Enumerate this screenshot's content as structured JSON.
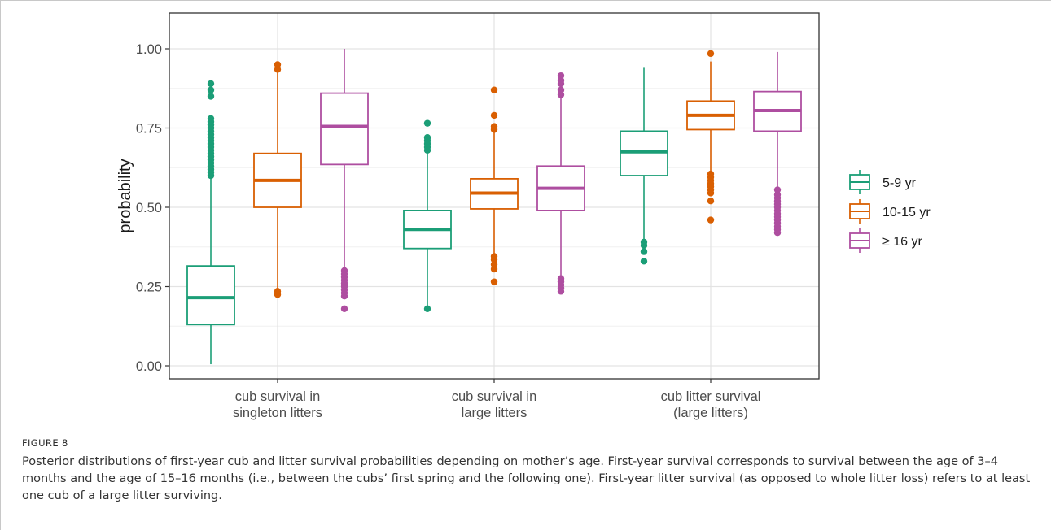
{
  "figure": {
    "label": "FIGURE 8",
    "caption": "Posterior distributions of first-year cub and litter survival probabilities depending on mother’s age. First-year survival corresponds to survival between the age of 3–4 months and the age of 15–16 months (i.e., between the cubs’ first spring and the following one). First-year litter survival (as opposed to whole litter loss) refers to at least one cub of a large litter surviving."
  },
  "chart_data": {
    "type": "box",
    "title": "",
    "xlabel": "",
    "ylabel": "probability",
    "ylim": [
      0,
      1
    ],
    "yticks": [
      "0.00",
      "0.25",
      "0.50",
      "0.75",
      "1.00"
    ],
    "grid": true,
    "legend": "right",
    "categories": [
      [
        "cub survival in",
        "singleton litters"
      ],
      [
        "cub survival in",
        "large litters"
      ],
      [
        "cub litter survival",
        "(large litters)"
      ]
    ],
    "series": [
      {
        "name": "5-9 yr",
        "color": "#1b9e77",
        "boxes": [
          {
            "min": 0.005,
            "q1": 0.13,
            "median": 0.215,
            "q3": 0.315,
            "max": 0.59,
            "outliers": [
              0.6,
              0.61,
              0.62,
              0.63,
              0.64,
              0.65,
              0.66,
              0.67,
              0.68,
              0.69,
              0.7,
              0.71,
              0.72,
              0.73,
              0.74,
              0.75,
              0.76,
              0.77,
              0.78,
              0.85,
              0.87,
              0.89
            ]
          },
          {
            "min": 0.18,
            "q1": 0.37,
            "median": 0.43,
            "q3": 0.49,
            "max": 0.675,
            "outliers": [
              0.18,
              0.68,
              0.69,
              0.7,
              0.71,
              0.72,
              0.765
            ]
          },
          {
            "min": 0.39,
            "q1": 0.6,
            "median": 0.675,
            "q3": 0.74,
            "max": 0.94,
            "outliers": [
              0.33,
              0.36,
              0.38,
              0.39
            ]
          }
        ]
      },
      {
        "name": "10-15 yr",
        "color": "#d95f02",
        "boxes": [
          {
            "min": 0.24,
            "q1": 0.5,
            "median": 0.585,
            "q3": 0.67,
            "max": 0.93,
            "outliers": [
              0.225,
              0.235,
              0.935,
              0.95
            ]
          },
          {
            "min": 0.35,
            "q1": 0.495,
            "median": 0.545,
            "q3": 0.59,
            "max": 0.74,
            "outliers": [
              0.265,
              0.305,
              0.32,
              0.335,
              0.345,
              0.745,
              0.755,
              0.79,
              0.87
            ]
          },
          {
            "min": 0.61,
            "q1": 0.745,
            "median": 0.79,
            "q3": 0.835,
            "max": 0.96,
            "outliers": [
              0.46,
              0.52,
              0.545,
              0.555,
              0.565,
              0.575,
              0.585,
              0.595,
              0.605,
              0.985
            ]
          }
        ]
      },
      {
        "name": "≥ 16 yr",
        "color": "#ae4ea0",
        "boxes": [
          {
            "min": 0.3,
            "q1": 0.635,
            "median": 0.755,
            "q3": 0.86,
            "max": 1.0,
            "outliers": [
              0.18,
              0.22,
              0.23,
              0.24,
              0.25,
              0.26,
              0.27,
              0.28,
              0.29,
              0.3
            ]
          },
          {
            "min": 0.28,
            "q1": 0.49,
            "median": 0.56,
            "q3": 0.63,
            "max": 0.85,
            "outliers": [
              0.235,
              0.245,
              0.255,
              0.265,
              0.275,
              0.855,
              0.87,
              0.89,
              0.9,
              0.915
            ]
          },
          {
            "min": 0.56,
            "q1": 0.74,
            "median": 0.805,
            "q3": 0.865,
            "max": 0.99,
            "outliers": [
              0.42,
              0.43,
              0.44,
              0.45,
              0.46,
              0.47,
              0.48,
              0.49,
              0.5,
              0.51,
              0.52,
              0.53,
              0.54,
              0.555
            ]
          }
        ]
      }
    ]
  }
}
